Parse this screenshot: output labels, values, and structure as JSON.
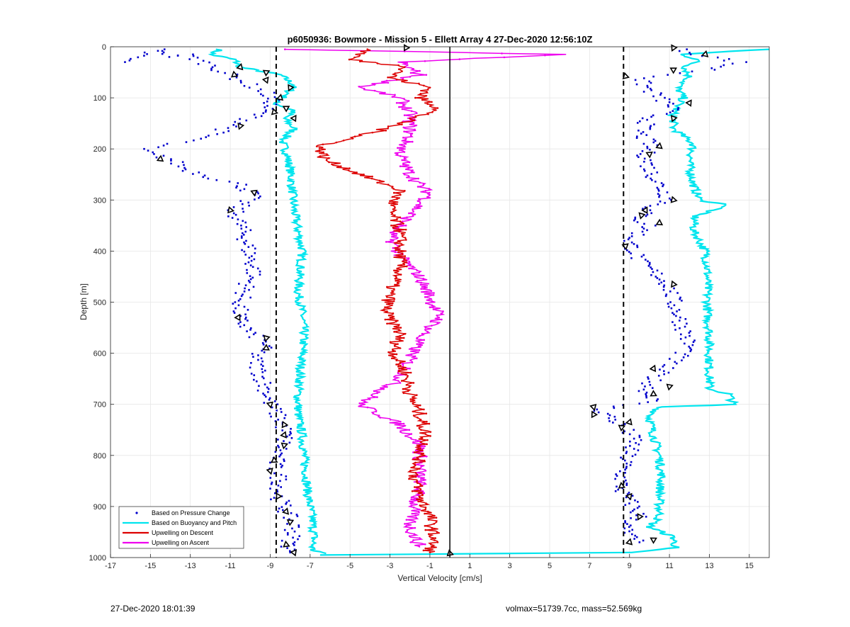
{
  "chart_data": {
    "type": "line",
    "title": "p6050936: Bowmore - Mission 5 - Ellett Array 4 27-Dec-2020 12:56:10Z",
    "xlabel": "Vertical Velocity [cm/s]",
    "ylabel": "Depth [m]",
    "xlim": [
      -17,
      16
    ],
    "ylim": [
      0,
      1000
    ],
    "y_reversed": true,
    "grid": true,
    "legend_position": "bottom-left",
    "x_ticks": [
      "-17",
      "-15",
      "-13",
      "-11",
      "-9",
      "-7",
      "-5",
      "-3",
      "-1",
      "1",
      "3",
      "5",
      "7",
      "9",
      "11",
      "13",
      "15"
    ],
    "y_ticks": [
      "0",
      "100",
      "200",
      "300",
      "400",
      "500",
      "600",
      "700",
      "800",
      "900",
      "1000"
    ],
    "reference_lines": [
      {
        "x": -8.7,
        "style": "dashed",
        "color": "#000000"
      },
      {
        "x": 8.7,
        "style": "dashed",
        "color": "#000000"
      },
      {
        "x": 0,
        "style": "solid",
        "color": "#000000"
      }
    ],
    "series": [
      {
        "name": "Based on Pressure Change",
        "color": "#0000CC",
        "marker": "dot",
        "descent_points": [
          [
            -16.5,
            30
          ],
          [
            -14.5,
            5
          ],
          [
            -13.8,
            20
          ],
          [
            -13.2,
            15
          ],
          [
            -11.8,
            40
          ],
          [
            -10.8,
            60
          ],
          [
            -10.2,
            70
          ],
          [
            -9.8,
            80
          ],
          [
            -9.2,
            90
          ],
          [
            -8.9,
            110
          ],
          [
            -9.5,
            130
          ],
          [
            -10.5,
            150
          ],
          [
            -11.5,
            165
          ],
          [
            -12.5,
            180
          ],
          [
            -14.0,
            190
          ],
          [
            -15.5,
            200
          ],
          [
            -15.0,
            210
          ],
          [
            -14.0,
            220
          ],
          [
            -13.2,
            240
          ],
          [
            -12.0,
            255
          ],
          [
            -10.5,
            270
          ],
          [
            -9.8,
            290
          ],
          [
            -10.8,
            320
          ],
          [
            -10.5,
            350
          ],
          [
            -10.2,
            380
          ],
          [
            -10.0,
            410
          ],
          [
            -9.8,
            440
          ],
          [
            -10.2,
            470
          ],
          [
            -10.5,
            500
          ],
          [
            -10.6,
            530
          ],
          [
            -10.0,
            560
          ],
          [
            -9.2,
            580
          ],
          [
            -9.8,
            610
          ],
          [
            -9.5,
            640
          ],
          [
            -9.2,
            670
          ],
          [
            -9.0,
            700
          ],
          [
            -8.5,
            730
          ],
          [
            -8.2,
            760
          ],
          [
            -8.5,
            790
          ],
          [
            -8.8,
            820
          ],
          [
            -8.5,
            850
          ],
          [
            -8.6,
            880
          ],
          [
            -8.2,
            910
          ],
          [
            -7.8,
            940
          ],
          [
            -8.0,
            970
          ],
          [
            -8.0,
            990
          ]
        ],
        "ascent_points": [
          [
            11.5,
            5
          ],
          [
            12.5,
            15
          ],
          [
            14.5,
            30
          ],
          [
            13.0,
            45
          ],
          [
            11.0,
            55
          ],
          [
            9.5,
            65
          ],
          [
            10.0,
            85
          ],
          [
            10.5,
            100
          ],
          [
            11.2,
            120
          ],
          [
            10.0,
            140
          ],
          [
            9.5,
            170
          ],
          [
            10.0,
            190
          ],
          [
            9.8,
            210
          ],
          [
            10.0,
            240
          ],
          [
            10.5,
            270
          ],
          [
            11.0,
            300
          ],
          [
            9.8,
            320
          ],
          [
            9.5,
            340
          ],
          [
            10.0,
            350
          ],
          [
            9.0,
            380
          ],
          [
            9.5,
            420
          ],
          [
            10.5,
            450
          ],
          [
            11.0,
            470
          ],
          [
            11.2,
            500
          ],
          [
            11.5,
            530
          ],
          [
            11.8,
            560
          ],
          [
            12.0,
            590
          ],
          [
            11.0,
            620
          ],
          [
            10.2,
            650
          ],
          [
            9.8,
            680
          ],
          [
            10.5,
            690
          ],
          [
            7.5,
            710
          ],
          [
            8.2,
            730
          ],
          [
            8.8,
            750
          ],
          [
            9.3,
            770
          ],
          [
            9.0,
            790
          ],
          [
            8.8,
            810
          ],
          [
            8.6,
            840
          ],
          [
            8.6,
            870
          ],
          [
            9.2,
            900
          ],
          [
            9.5,
            920
          ],
          [
            8.7,
            940
          ],
          [
            9.0,
            960
          ],
          [
            9.5,
            970
          ]
        ]
      },
      {
        "name": "Based on Buoyancy and Pitch",
        "color": "#00E5EE",
        "descent_points": [
          [
            -11.5,
            5
          ],
          [
            -12.0,
            15
          ],
          [
            -10.8,
            25
          ],
          [
            -10.5,
            40
          ],
          [
            -8.5,
            55
          ],
          [
            -7.8,
            75
          ],
          [
            -8.2,
            95
          ],
          [
            -8.8,
            110
          ],
          [
            -7.8,
            125
          ],
          [
            -8.3,
            140
          ],
          [
            -7.8,
            160
          ],
          [
            -8.4,
            185
          ],
          [
            -8.2,
            205
          ],
          [
            -8.0,
            240
          ],
          [
            -7.9,
            280
          ],
          [
            -7.8,
            320
          ],
          [
            -7.6,
            360
          ],
          [
            -7.4,
            400
          ],
          [
            -7.5,
            440
          ],
          [
            -7.6,
            480
          ],
          [
            -7.4,
            520
          ],
          [
            -7.3,
            560
          ],
          [
            -7.4,
            600
          ],
          [
            -7.5,
            640
          ],
          [
            -7.6,
            680
          ],
          [
            -7.6,
            720
          ],
          [
            -7.4,
            760
          ],
          [
            -7.3,
            800
          ],
          [
            -7.2,
            840
          ],
          [
            -7.1,
            880
          ],
          [
            -6.9,
            920
          ],
          [
            -6.8,
            960
          ],
          [
            -6.9,
            985
          ],
          [
            -6.2,
            992
          ]
        ],
        "ascent_points": [
          [
            15.8,
            5
          ],
          [
            11.5,
            15
          ],
          [
            12.5,
            25
          ],
          [
            11.8,
            40
          ],
          [
            12.0,
            60
          ],
          [
            11.4,
            80
          ],
          [
            11.7,
            100
          ],
          [
            11.2,
            130
          ],
          [
            11.2,
            160
          ],
          [
            12.2,
            190
          ],
          [
            12.0,
            230
          ],
          [
            12.2,
            270
          ],
          [
            12.5,
            300
          ],
          [
            14.0,
            310
          ],
          [
            12.3,
            330
          ],
          [
            12.2,
            360
          ],
          [
            12.8,
            400
          ],
          [
            12.9,
            440
          ],
          [
            12.9,
            480
          ],
          [
            12.9,
            520
          ],
          [
            13.0,
            560
          ],
          [
            13.0,
            600
          ],
          [
            13.0,
            640
          ],
          [
            13.0,
            670
          ],
          [
            14.0,
            680
          ],
          [
            14.2,
            700
          ],
          [
            13.0,
            702
          ],
          [
            10.5,
            705
          ],
          [
            10.0,
            725
          ],
          [
            10.2,
            760
          ],
          [
            10.5,
            800
          ],
          [
            10.6,
            840
          ],
          [
            10.5,
            880
          ],
          [
            10.5,
            920
          ],
          [
            10.0,
            940
          ],
          [
            11.2,
            960
          ],
          [
            11.3,
            980
          ],
          [
            9.0,
            990
          ],
          [
            -6.5,
            995
          ]
        ]
      },
      {
        "name": "Upwelling on Descent",
        "color": "#DD0000",
        "points": [
          [
            -4.0,
            5
          ],
          [
            -5.0,
            25
          ],
          [
            -2.0,
            40
          ],
          [
            -3.0,
            60
          ],
          [
            -1.0,
            80
          ],
          [
            -1.5,
            100
          ],
          [
            -0.5,
            120
          ],
          [
            -2.5,
            150
          ],
          [
            -4.0,
            170
          ],
          [
            -6.5,
            195
          ],
          [
            -6.3,
            220
          ],
          [
            -4.5,
            250
          ],
          [
            -2.5,
            280
          ],
          [
            -3.0,
            320
          ],
          [
            -2.5,
            360
          ],
          [
            -2.5,
            400
          ],
          [
            -2.5,
            440
          ],
          [
            -3.0,
            480
          ],
          [
            -3.2,
            520
          ],
          [
            -2.5,
            560
          ],
          [
            -2.8,
            600
          ],
          [
            -2.2,
            640
          ],
          [
            -2.0,
            680
          ],
          [
            -1.5,
            720
          ],
          [
            -1.2,
            760
          ],
          [
            -1.5,
            800
          ],
          [
            -1.8,
            840
          ],
          [
            -1.5,
            880
          ],
          [
            -1.0,
            920
          ],
          [
            -0.8,
            960
          ],
          [
            -1.0,
            990
          ]
        ]
      },
      {
        "name": "Upwelling on Ascent",
        "color": "#EE00EE",
        "points": [
          [
            -8.0,
            5
          ],
          [
            5.5,
            15
          ],
          [
            -2.5,
            30
          ],
          [
            -1.5,
            55
          ],
          [
            -4.5,
            80
          ],
          [
            -2.5,
            100
          ],
          [
            -2.0,
            130
          ],
          [
            -2.0,
            170
          ],
          [
            -2.5,
            210
          ],
          [
            -2.0,
            250
          ],
          [
            -1.0,
            290
          ],
          [
            -2.0,
            330
          ],
          [
            -3.0,
            370
          ],
          [
            -2.5,
            410
          ],
          [
            -1.5,
            450
          ],
          [
            -1.0,
            490
          ],
          [
            -0.5,
            530
          ],
          [
            -1.5,
            570
          ],
          [
            -2.0,
            610
          ],
          [
            -2.5,
            650
          ],
          [
            -4.5,
            700
          ],
          [
            -2.5,
            740
          ],
          [
            -1.5,
            780
          ],
          [
            -1.5,
            820
          ],
          [
            -1.5,
            860
          ],
          [
            -1.8,
            900
          ],
          [
            -2.0,
            940
          ],
          [
            -1.5,
            980
          ]
        ]
      }
    ],
    "ascent_markers": [
      [
        -2.2,
        2
      ],
      [
        -10.5,
        40
      ],
      [
        -9.2,
        50
      ],
      [
        -10.8,
        55
      ],
      [
        -9.2,
        65
      ],
      [
        -8.0,
        80
      ],
      [
        -8.5,
        100
      ],
      [
        -8.2,
        120
      ],
      [
        -8.8,
        128
      ],
      [
        -7.8,
        140
      ],
      [
        -10.5,
        155
      ],
      [
        -14.5,
        220
      ],
      [
        -9.8,
        285
      ],
      [
        -11.0,
        320
      ],
      [
        -10.6,
        530
      ],
      [
        -9.2,
        570
      ],
      [
        -9.2,
        590
      ],
      [
        -9.0,
        700
      ],
      [
        -8.3,
        740
      ],
      [
        -8.3,
        760
      ],
      [
        -8.3,
        780
      ],
      [
        -8.8,
        810
      ],
      [
        -9.0,
        830
      ],
      [
        -8.6,
        880
      ],
      [
        -8.2,
        910
      ],
      [
        -8.0,
        930
      ],
      [
        -8.2,
        975
      ],
      [
        -7.8,
        990
      ],
      [
        11.2,
        2
      ],
      [
        12.8,
        15
      ],
      [
        11.2,
        45
      ],
      [
        8.8,
        58
      ],
      [
        12.0,
        110
      ],
      [
        11.2,
        140
      ],
      [
        10.5,
        195
      ],
      [
        10.0,
        210
      ],
      [
        11.2,
        300
      ],
      [
        9.8,
        320
      ],
      [
        9.6,
        330
      ],
      [
        10.5,
        345
      ],
      [
        8.8,
        390
      ],
      [
        11.2,
        465
      ],
      [
        10.2,
        630
      ],
      [
        11.0,
        665
      ],
      [
        10.2,
        680
      ],
      [
        7.2,
        705
      ],
      [
        7.2,
        720
      ],
      [
        9.0,
        735
      ],
      [
        8.6,
        745
      ],
      [
        8.6,
        860
      ],
      [
        9.0,
        880
      ],
      [
        9.5,
        920
      ],
      [
        9.0,
        970
      ],
      [
        10.2,
        965
      ],
      [
        0,
        992
      ]
    ],
    "legend": [
      "Based on Pressure Change",
      "Based on Buoyancy and Pitch",
      "Upwelling on Descent",
      "Upwelling on Ascent"
    ]
  },
  "footer": {
    "timestamp": "27-Dec-2020 18:01:39",
    "glider_info": "volmax=51739.7cc, mass=52.569kg"
  }
}
